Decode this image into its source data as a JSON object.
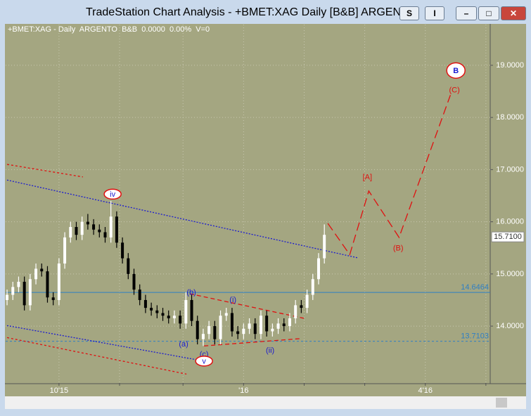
{
  "window_title": "TradeStation Chart Analysis - +BMET:XAG Daily [B&B] ARGENTO",
  "buttons": [
    "S",
    "I"
  ],
  "chart_data": {
    "type": "candlestick",
    "subtitle": "+BMET:XAG - Daily  ARGENTO  B&B  0.0000  0.00%  V=0",
    "background": "#a4a681",
    "up_color": "#ffffff",
    "down_color": "#000000",
    "xlim": [
      -0.5,
      167.5
    ],
    "xticks": [
      {
        "value": 18,
        "label": "10'15"
      },
      {
        "value": 39,
        "label": null
      },
      {
        "value": 61,
        "label": null
      },
      {
        "value": 82,
        "label": "'16"
      },
      {
        "value": 103,
        "label": null
      },
      {
        "value": 124,
        "label": null
      },
      {
        "value": 145,
        "label": "4'16"
      },
      {
        "value": 166,
        "label": null
      }
    ],
    "ylim": [
      12.91,
      19.78
    ],
    "yticks": [
      {
        "value": 14,
        "label": "14.0000"
      },
      {
        "value": 15,
        "label": "15.0000"
      },
      {
        "value": 16,
        "label": "16.0000"
      },
      {
        "value": 17,
        "label": "17.0000"
      },
      {
        "value": 18,
        "label": "18.0000"
      },
      {
        "value": 19,
        "label": "19.0000"
      }
    ],
    "grid": true,
    "x": [
      0,
      2,
      4,
      6,
      8,
      10,
      12,
      14,
      16,
      18,
      20,
      22,
      24,
      26,
      28,
      30,
      32,
      34,
      36,
      38,
      40,
      42,
      44,
      46,
      48,
      50,
      52,
      54,
      56,
      58,
      60,
      62,
      64,
      66,
      68,
      70,
      72,
      74,
      76,
      78,
      80,
      82,
      84,
      86,
      88,
      90,
      92,
      94,
      96,
      98,
      100,
      102,
      104,
      106,
      108,
      110
    ],
    "open": [
      14.5,
      14.6,
      14.75,
      14.85,
      14.4,
      14.9,
      15.1,
      15.05,
      14.55,
      14.5,
      15.2,
      15.7,
      15.9,
      15.75,
      16.0,
      15.95,
      15.85,
      15.8,
      15.7,
      16.1,
      15.6,
      15.3,
      15.0,
      14.7,
      14.5,
      14.35,
      14.3,
      14.25,
      14.2,
      14.15,
      14.2,
      14.05,
      14.5,
      14.1,
      13.75,
      13.85,
      14.0,
      13.75,
      14.2,
      14.25,
      13.9,
      13.85,
      13.95,
      14.05,
      13.85,
      14.2,
      13.9,
      13.95,
      14.05,
      14.0,
      14.15,
      14.4,
      14.35,
      14.6,
      14.9,
      15.3
    ],
    "high": [
      14.7,
      14.85,
      14.95,
      14.95,
      15.0,
      15.2,
      15.2,
      15.15,
      14.65,
      15.3,
      15.8,
      16.0,
      16.0,
      16.1,
      16.15,
      16.05,
      15.95,
      15.9,
      16.4,
      16.2,
      15.7,
      15.4,
      15.1,
      14.8,
      14.6,
      14.45,
      14.4,
      14.35,
      14.3,
      14.3,
      14.3,
      14.65,
      14.6,
      14.2,
      13.95,
      14.1,
      14.1,
      14.3,
      14.35,
      14.35,
      14.0,
      14.05,
      14.15,
      14.15,
      14.3,
      14.3,
      14.05,
      14.15,
      14.15,
      14.25,
      14.5,
      14.5,
      14.7,
      15.0,
      15.4,
      15.95
    ],
    "low": [
      14.4,
      14.5,
      14.65,
      14.3,
      14.3,
      14.8,
      14.95,
      14.45,
      14.4,
      14.4,
      15.1,
      15.6,
      15.65,
      15.65,
      15.85,
      15.75,
      15.7,
      15.6,
      15.6,
      15.5,
      15.2,
      14.9,
      14.6,
      14.4,
      14.25,
      14.2,
      14.15,
      14.1,
      14.05,
      14.05,
      13.95,
      13.95,
      14.0,
      13.65,
      13.62,
      13.75,
      13.65,
      13.65,
      14.1,
      13.8,
      13.75,
      13.75,
      13.85,
      13.75,
      13.75,
      13.8,
      13.8,
      13.85,
      13.9,
      13.9,
      14.05,
      14.25,
      14.25,
      14.5,
      14.8,
      15.2
    ],
    "close": [
      14.6,
      14.75,
      14.85,
      14.4,
      14.9,
      15.1,
      15.05,
      14.55,
      14.5,
      15.2,
      15.7,
      15.9,
      15.75,
      16.0,
      15.95,
      15.85,
      15.8,
      15.7,
      16.1,
      15.6,
      15.3,
      15.0,
      14.7,
      14.5,
      14.35,
      14.3,
      14.25,
      14.2,
      14.15,
      14.2,
      14.05,
      14.5,
      14.1,
      13.75,
      13.85,
      14.0,
      13.75,
      14.2,
      14.25,
      13.9,
      13.85,
      13.95,
      14.05,
      13.85,
      14.2,
      13.9,
      13.95,
      14.05,
      14.0,
      14.15,
      14.4,
      14.35,
      14.6,
      14.9,
      15.3,
      15.75
    ],
    "price_lines": [
      {
        "value": 14.6464,
        "label": "14.6464",
        "color": "#2f7fc4",
        "dash": "none"
      },
      {
        "value": 13.7103,
        "label": "13.7103",
        "color": "#2f7fc4",
        "dash": "3 3"
      }
    ],
    "last_price": {
      "value": 15.71,
      "label": "15.7100"
    },
    "trend_lines": [
      {
        "x": [
          0,
          121.5
        ],
        "y": [
          16.8,
          15.31
        ],
        "color": "#1a1ad0",
        "dash": "2 2"
      },
      {
        "x": [
          0,
          26.3
        ],
        "y": [
          17.1,
          16.86
        ],
        "color": "#e01010",
        "dash": "3 3"
      },
      {
        "x": [
          0,
          66.3
        ],
        "y": [
          14.01,
          13.35
        ],
        "color": "#1a1ad0",
        "dash": "2 2"
      },
      {
        "x": [
          0,
          62.2
        ],
        "y": [
          13.78,
          13.08
        ],
        "color": "#e01010",
        "dash": "3 3"
      },
      {
        "x": [
          63.4,
          102.9
        ],
        "y": [
          14.62,
          14.15
        ],
        "color": "#e01010",
        "dash": "6 4"
      },
      {
        "x": [
          68.3,
          101.7
        ],
        "y": [
          13.62,
          13.76
        ],
        "color": "#e01010",
        "dash": "6 4"
      },
      {
        "x": [
          111.2,
          118.8,
          125.4,
          135.9,
          153.7
        ],
        "y": [
          15.97,
          15.37,
          16.59,
          15.7,
          18.43
        ],
        "color": "#e01010",
        "dash": "12 6"
      }
    ],
    "annotations": [
      {
        "label": "iv",
        "x": 36.6,
        "y": 16.53,
        "color": "#1a1ad0",
        "circle": true
      },
      {
        "label": "(b)",
        "x": 63.9,
        "y": 14.65,
        "color": "#1a1ad0",
        "circle": false
      },
      {
        "label": "(a)",
        "x": 61.2,
        "y": 13.66,
        "color": "#1a1ad0",
        "circle": false
      },
      {
        "label": "(c)",
        "x": 68.3,
        "y": 13.47,
        "color": "#1a1ad0",
        "circle": false
      },
      {
        "label": "v",
        "x": 68.3,
        "y": 13.33,
        "color": "#1a1ad0",
        "circle": true
      },
      {
        "label": "(i)",
        "x": 78.3,
        "y": 14.51,
        "color": "#1a1ad0",
        "circle": false
      },
      {
        "label": "(ii)",
        "x": 91.2,
        "y": 13.54,
        "color": "#1a1ad0",
        "circle": false
      },
      {
        "label": "[A]",
        "x": 124.9,
        "y": 16.86,
        "color": "#e01010",
        "circle": false
      },
      {
        "label": "(B)",
        "x": 135.6,
        "y": 15.5,
        "color": "#e01010",
        "circle": false
      },
      {
        "label": "(C)",
        "x": 155.1,
        "y": 18.53,
        "color": "#e01010",
        "circle": false
      },
      {
        "label": "B",
        "x": 155.6,
        "y": 18.9,
        "color": "#1a1ad0",
        "circle": true
      }
    ]
  }
}
